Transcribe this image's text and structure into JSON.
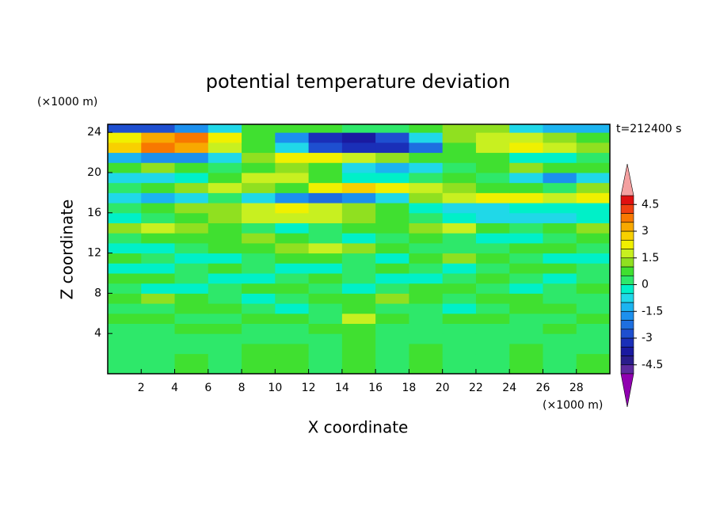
{
  "chart_data": {
    "type": "contourf",
    "title": "potential temperature deviation",
    "x_label": "X coordinate",
    "y_label": "Z coordinate",
    "x_unit": "(×1000 m)",
    "y_unit": "(×1000 m)",
    "annotation": "t=212400 s",
    "xlim": [
      0,
      30
    ],
    "ylim": [
      0,
      24.8
    ],
    "xticks": [
      2,
      4,
      6,
      8,
      10,
      12,
      14,
      16,
      18,
      20,
      22,
      24,
      26,
      28
    ],
    "yticks": [
      4,
      8,
      12,
      16,
      20,
      24
    ],
    "x": [
      1,
      3,
      5,
      7,
      9,
      11,
      13,
      15,
      17,
      19,
      21,
      23,
      25,
      27,
      29
    ],
    "y": [
      0.5,
      1.5,
      2.5,
      3.5,
      4.5,
      5.5,
      6.5,
      7.5,
      8.5,
      9.5,
      10.5,
      11.5,
      12.5,
      13.5,
      14.5,
      15.5,
      16.5,
      17.5,
      18.5,
      19.5,
      20.5,
      21.5,
      22.5,
      23.5,
      24.5
    ],
    "values": [
      [
        0,
        0,
        0.5,
        0,
        0.5,
        0.5,
        0,
        0.5,
        0,
        0.5,
        0,
        0,
        0.5,
        0,
        0.5
      ],
      [
        0,
        0,
        0.5,
        0,
        0.5,
        0.5,
        0,
        0.5,
        0,
        0.5,
        0,
        0,
        0.5,
        0,
        0.5
      ],
      [
        0,
        0,
        0,
        0,
        0.5,
        0.5,
        0,
        0.5,
        0,
        0.5,
        0,
        0,
        0.5,
        0,
        0
      ],
      [
        0,
        0,
        0,
        0,
        0,
        0,
        0,
        0.5,
        0,
        0,
        0,
        0,
        0,
        0,
        0
      ],
      [
        0,
        0,
        0.5,
        0.5,
        0,
        0,
        0.5,
        0.5,
        0,
        0,
        0,
        0,
        0,
        0.5,
        0
      ],
      [
        0.5,
        0.5,
        0,
        0,
        0.5,
        0.5,
        0,
        1.5,
        0.5,
        0,
        0.5,
        0.5,
        0,
        0,
        0.5
      ],
      [
        0,
        0,
        0.5,
        0.5,
        0,
        -0.5,
        0,
        0.5,
        0,
        0,
        -0.5,
        0,
        0.5,
        0.5,
        0
      ],
      [
        0.5,
        1,
        0.5,
        0,
        -0.5,
        0,
        0.5,
        0.5,
        1,
        0.5,
        0,
        0.5,
        0.5,
        0,
        0
      ],
      [
        0,
        -0.5,
        -0.5,
        0,
        0.5,
        0.5,
        0,
        -0.5,
        0,
        0.5,
        0.5,
        0,
        -0.5,
        0,
        0.5
      ],
      [
        0.5,
        0.5,
        0,
        -0.5,
        -0.5,
        0,
        0.5,
        0,
        -0.5,
        -0.5,
        0,
        0.5,
        0,
        -0.5,
        0
      ],
      [
        -0.5,
        -0.5,
        0,
        0.5,
        0,
        -0.5,
        -0.5,
        0,
        0.5,
        0,
        -0.5,
        0,
        0.5,
        0.5,
        0
      ],
      [
        0.5,
        0,
        -0.5,
        -0.5,
        0,
        0.5,
        0.5,
        0,
        -0.5,
        0.5,
        1,
        0.5,
        0,
        -0.5,
        -0.5
      ],
      [
        -0.5,
        -0.5,
        0,
        0.5,
        0.5,
        1,
        1.5,
        1,
        0.5,
        0,
        0,
        0,
        0.5,
        0.5,
        0
      ],
      [
        0,
        0.5,
        0.5,
        0.5,
        1,
        0.5,
        0,
        -0.5,
        0,
        0.5,
        0,
        -0.5,
        -0.5,
        0,
        0.5
      ],
      [
        1,
        1.5,
        1,
        0.5,
        0,
        -0.5,
        0,
        0.5,
        0.5,
        1,
        1.5,
        0.5,
        0,
        0.5,
        1
      ],
      [
        -0.5,
        0,
        0.5,
        1,
        1.5,
        1.5,
        1.5,
        1,
        0.5,
        0,
        -0.5,
        -1,
        -1,
        -1,
        -0.5
      ],
      [
        0,
        0.5,
        1,
        1,
        1.5,
        2,
        1.5,
        1,
        0.5,
        -0.5,
        -1,
        -1,
        -0.5,
        -0.5,
        -0.5
      ],
      [
        -1,
        -1.5,
        -1,
        0,
        -1,
        -2,
        -2.5,
        -2,
        -1,
        1,
        1.5,
        2,
        2,
        1.5,
        2
      ],
      [
        0,
        0.5,
        1,
        1.5,
        1,
        0.5,
        2,
        2.5,
        2,
        1.5,
        1,
        0.5,
        0.5,
        0,
        1
      ],
      [
        -1,
        -1,
        -0.5,
        0.5,
        1.5,
        1.5,
        0.5,
        -0.5,
        -0.5,
        0,
        0.5,
        0,
        -1,
        -2,
        -1
      ],
      [
        0.5,
        1,
        0.5,
        0,
        0.5,
        1,
        0.5,
        -1,
        -1.5,
        -1,
        0,
        0.5,
        1,
        0.5,
        0.5
      ],
      [
        -1.5,
        -2,
        -2,
        -1,
        1,
        2,
        2,
        1.5,
        1,
        0.5,
        0.5,
        0.5,
        -0.5,
        -0.5,
        0
      ],
      [
        2.5,
        3.5,
        3,
        1.5,
        0.5,
        -1,
        -3,
        -3.5,
        -3.5,
        -2.5,
        0.5,
        1.5,
        2,
        1.5,
        1
      ],
      [
        2,
        3,
        3.5,
        2,
        0.5,
        -2,
        -3.5,
        -4,
        -3,
        -1,
        1,
        1.5,
        1.5,
        1,
        0.5
      ],
      [
        -3,
        -3,
        -2,
        -1,
        0.5,
        0.5,
        0.5,
        0,
        0,
        0.5,
        1,
        1,
        -1,
        -1.5,
        -1.5
      ]
    ],
    "levels": [
      -5,
      -4.5,
      -4,
      -3.5,
      -3,
      -2.5,
      -2,
      -1.5,
      -1,
      -0.5,
      0,
      0.5,
      1,
      1.5,
      2,
      2.5,
      3,
      3.5,
      4,
      4.5,
      5
    ],
    "colors": [
      "#9000b0",
      "#5c2a9e",
      "#2a1d8c",
      "#1a1aa0",
      "#1a2fb8",
      "#1e4fd0",
      "#1e6fe0",
      "#1c90ee",
      "#1cb4f0",
      "#20d8e8",
      "#00f0c8",
      "#2ee86a",
      "#40e030",
      "#90e020",
      "#c8f020",
      "#f0f000",
      "#f8d000",
      "#f8a800",
      "#f87800",
      "#f04010",
      "#e01010",
      "#f4a0a0"
    ],
    "colorbar_ticks": [
      -4.5,
      -3,
      -1.5,
      0,
      1.5,
      3,
      4.5
    ]
  }
}
